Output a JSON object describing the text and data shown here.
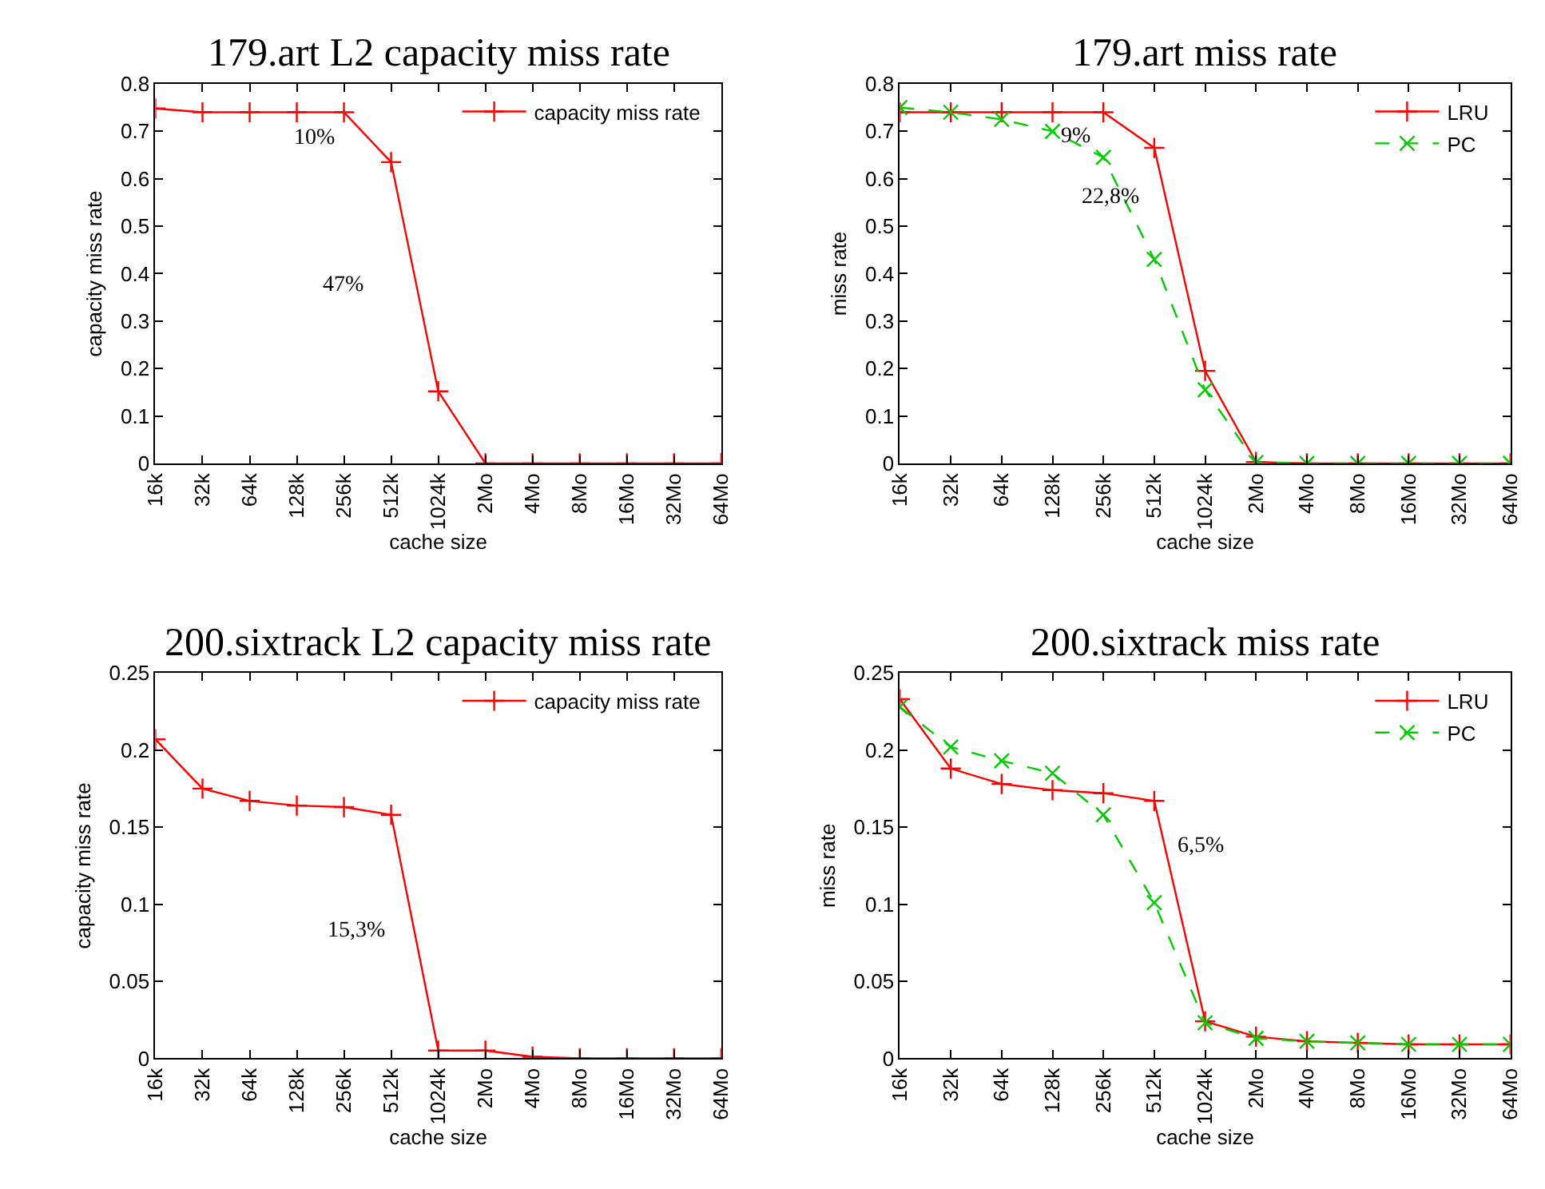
{
  "chart_data": [
    {
      "type": "line",
      "title": "179.art L2 capacity miss rate",
      "xlabel": "cache size",
      "ylabel": "capacity miss rate",
      "categories": [
        "16k",
        "32k",
        "64k",
        "128k",
        "256k",
        "512k",
        "1024k",
        "2Mo",
        "4Mo",
        "8Mo",
        "16Mo",
        "32Mo",
        "64Mo"
      ],
      "series": [
        {
          "name": "capacity miss rate",
          "color": "#ff0000",
          "marker": "cross",
          "line_style": "solid",
          "values": [
            0.748,
            0.74,
            0.74,
            0.74,
            0.74,
            0.635,
            0.152,
            0,
            0,
            0,
            0,
            0,
            0
          ]
        }
      ],
      "ylim": [
        0,
        0.8
      ],
      "yticks": [
        0,
        0.1,
        0.2,
        0.3,
        0.4,
        0.5,
        0.6,
        0.7,
        0.8
      ],
      "legend": "top right",
      "annotations": [
        "10%",
        "47%"
      ]
    },
    {
      "type": "line",
      "title": "179.art miss rate",
      "xlabel": "cache size",
      "ylabel": "miss rate",
      "categories": [
        "16k",
        "32k",
        "64k",
        "128k",
        "256k",
        "512k",
        "1024k",
        "2Mo",
        "4Mo",
        "8Mo",
        "16Mo",
        "32Mo",
        "64Mo"
      ],
      "series": [
        {
          "name": "LRU",
          "color": "#ff0000",
          "marker": "cross",
          "line_style": "solid",
          "values": [
            0.74,
            0.74,
            0.74,
            0.74,
            0.74,
            0.665,
            0.195,
            0.003,
            0,
            0,
            0,
            0,
            0
          ]
        },
        {
          "name": "PC",
          "color": "#00cc00",
          "marker": "x",
          "line_style": "dashed",
          "values": [
            0.75,
            0.74,
            0.725,
            0.7,
            0.645,
            0.43,
            0.155,
            0.002,
            0,
            0,
            0,
            0,
            0
          ]
        }
      ],
      "ylim": [
        0,
        0.8
      ],
      "yticks": [
        0,
        0.1,
        0.2,
        0.3,
        0.4,
        0.5,
        0.6,
        0.7,
        0.8
      ],
      "legend": "top right",
      "annotations": [
        "9%",
        "22,8%"
      ]
    },
    {
      "type": "line",
      "title": "200.sixtrack L2 capacity miss rate",
      "xlabel": "cache size",
      "ylabel": "capacity miss rate",
      "categories": [
        "16k",
        "32k",
        "64k",
        "128k",
        "256k",
        "512k",
        "1024k",
        "2Mo",
        "4Mo",
        "8Mo",
        "16Mo",
        "32Mo",
        "64Mo"
      ],
      "series": [
        {
          "name": "capacity miss rate",
          "color": "#ff0000",
          "marker": "cross",
          "line_style": "solid",
          "values": [
            0.207,
            0.175,
            0.167,
            0.164,
            0.163,
            0.158,
            0.005,
            0.005,
            0.001,
            0,
            0,
            0,
            0
          ]
        }
      ],
      "ylim": [
        0,
        0.25
      ],
      "yticks": [
        0,
        0.05,
        0.1,
        0.15,
        0.2,
        0.25
      ],
      "legend": "top right",
      "annotations": [
        "15,3%"
      ]
    },
    {
      "type": "line",
      "title": "200.sixtrack miss rate",
      "xlabel": "cache size",
      "ylabel": "miss rate",
      "categories": [
        "16k",
        "32k",
        "64k",
        "128k",
        "256k",
        "512k",
        "1024k",
        "2Mo",
        "4Mo",
        "8Mo",
        "16Mo",
        "32Mo",
        "64Mo"
      ],
      "series": [
        {
          "name": "LRU",
          "color": "#ff0000",
          "marker": "cross",
          "line_style": "solid",
          "values": [
            0.233,
            0.188,
            0.178,
            0.174,
            0.172,
            0.167,
            0.024,
            0.014,
            0.011,
            0.01,
            0.009,
            0.009,
            0.009
          ]
        },
        {
          "name": "PC",
          "color": "#00cc00",
          "marker": "x",
          "line_style": "dashed",
          "values": [
            0.228,
            0.202,
            0.193,
            0.185,
            0.158,
            0.101,
            0.023,
            0.013,
            0.011,
            0.01,
            0.009,
            0.009,
            0.009
          ]
        }
      ],
      "ylim": [
        0,
        0.25
      ],
      "yticks": [
        0,
        0.05,
        0.1,
        0.15,
        0.2,
        0.25
      ],
      "legend": "top right",
      "annotations": [
        "6,5%"
      ]
    }
  ]
}
